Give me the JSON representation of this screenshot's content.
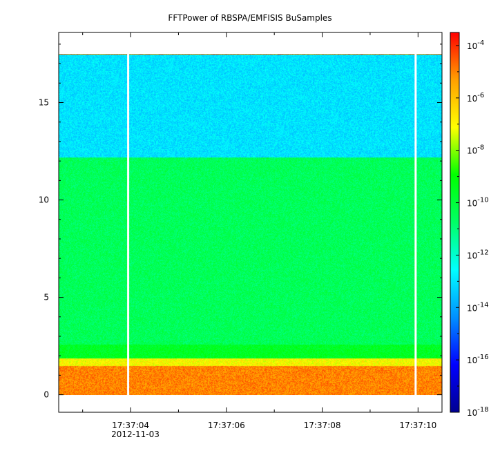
{
  "chart_data": {
    "type": "heatmap",
    "title": "FFTPower of RBSPA/EMFISIS  BuSamples",
    "xlabel": "",
    "ylabel": "",
    "date_label": "2012-11-03",
    "x_ticks": [
      {
        "value": "17:37:04",
        "sec": 4
      },
      {
        "value": "17:37:06",
        "sec": 6
      },
      {
        "value": "17:37:08",
        "sec": 8
      },
      {
        "value": "17:37:10",
        "sec": 10
      }
    ],
    "x_minor_ticks_sec": [
      3,
      5,
      7,
      9
    ],
    "xlim_sec": [
      2.5,
      10.5
    ],
    "y_ticks": [
      0,
      5,
      10,
      15
    ],
    "ylim": [
      -0.9,
      18.6
    ],
    "data_ylim": [
      0,
      17.5
    ],
    "gaps_sec": [
      3.95,
      9.95
    ],
    "colorbar": {
      "scale": "log",
      "range_exp": [
        -18,
        -3.5
      ],
      "tick_exponents": [
        -4,
        -6,
        -8,
        -10,
        -12,
        -14,
        -16,
        -18
      ],
      "colormap": [
        "#000090",
        "#0000ff",
        "#0090ff",
        "#00ffff",
        "#00ff66",
        "#00ff00",
        "#ffff00",
        "#ffa000",
        "#ff0000"
      ]
    },
    "bands": [
      {
        "y_range": [
          12.2,
          17.5
        ],
        "level_exp": -13.0,
        "note": "cyan-green upper band"
      },
      {
        "y_range": [
          2.6,
          12.2
        ],
        "level_exp": -10.5,
        "note": "green middle band"
      },
      {
        "y_range": [
          1.9,
          2.6
        ],
        "level_exp": -9.6,
        "note": "yellow-green line"
      },
      {
        "y_range": [
          1.5,
          1.9
        ],
        "level_exp": -7.0,
        "note": "orange edge"
      },
      {
        "y_range": [
          0.0,
          1.5
        ],
        "level_exp": -5.0,
        "note": "red-orange low band"
      }
    ]
  }
}
